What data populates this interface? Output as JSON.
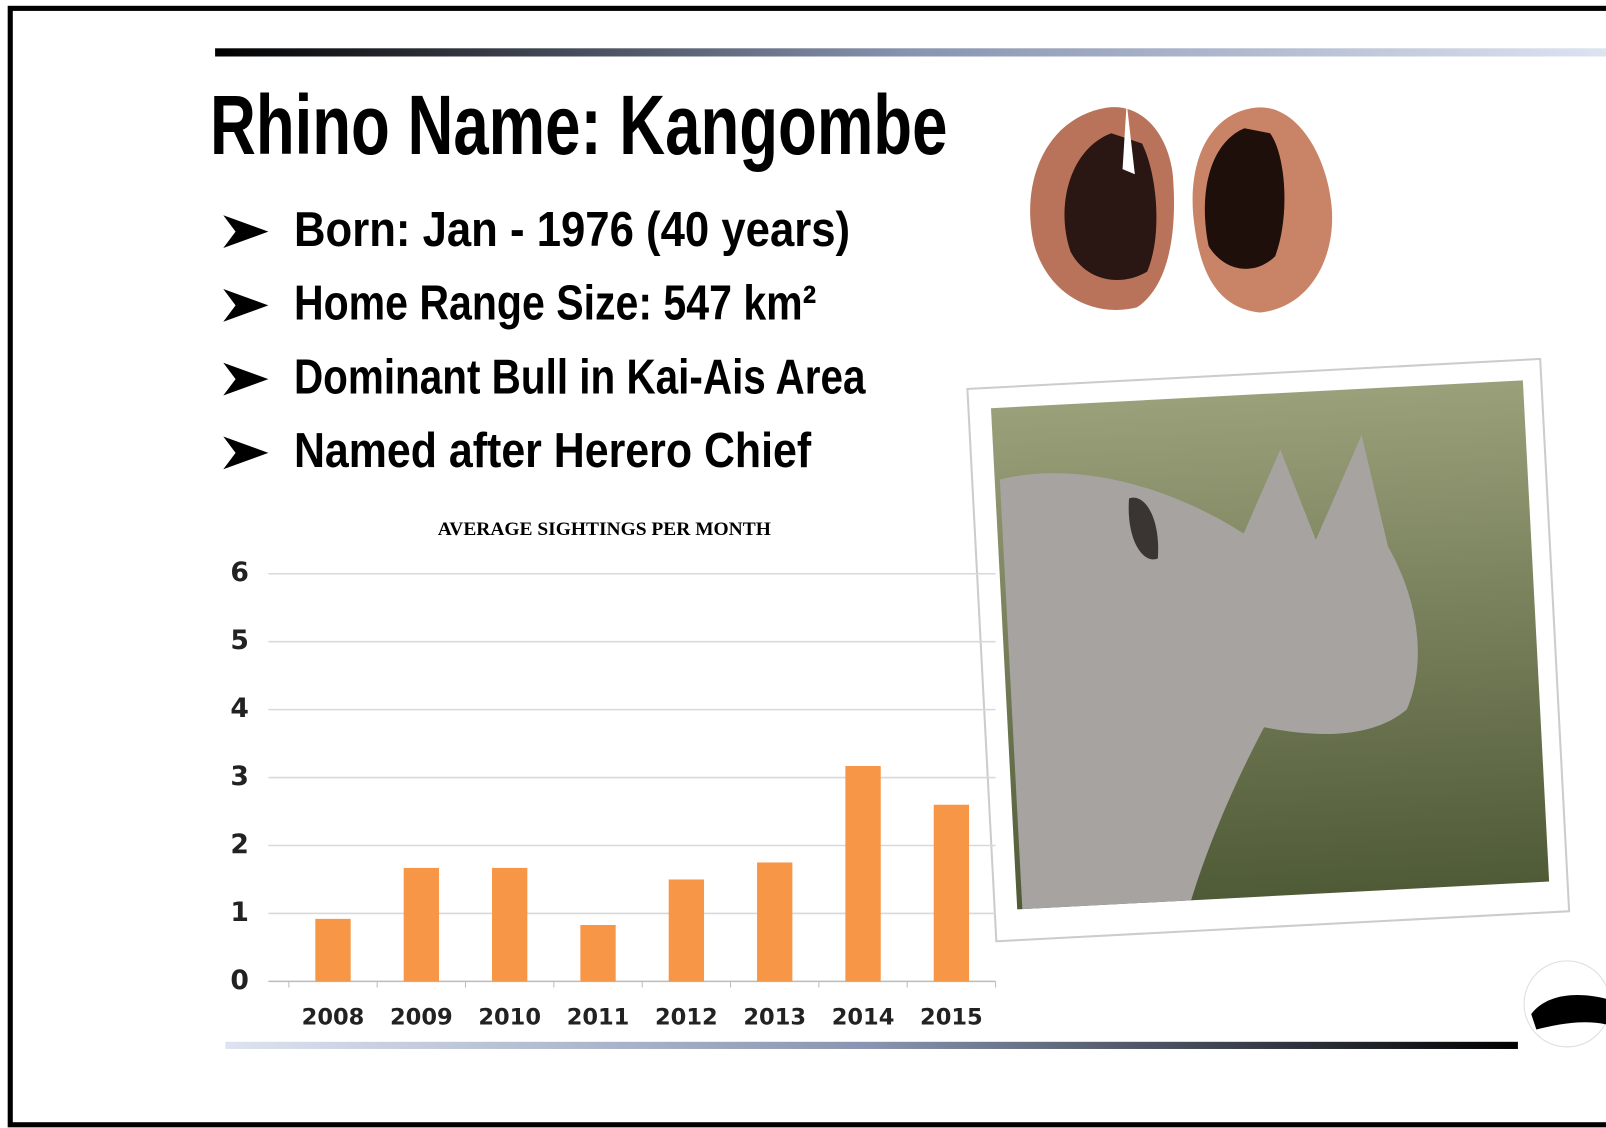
{
  "header": {
    "title": "Rhino Name: Kangombe"
  },
  "bullets": [
    "Born:  Jan - 1976 (40 years)",
    "Home Range Size: 547 km²",
    "Dominant Bull in Kai-Ais Area",
    "Named after Herero Chief"
  ],
  "chart_data": {
    "type": "bar",
    "title": "AVERAGE SIGHTINGS PER MONTH",
    "categories": [
      "2008",
      "2009",
      "2010",
      "2011",
      "2012",
      "2013",
      "2014",
      "2015"
    ],
    "values": [
      0.92,
      1.67,
      1.67,
      0.83,
      1.5,
      1.75,
      3.17,
      2.6
    ],
    "color": "#f79646",
    "ylim": [
      0,
      6
    ],
    "yticks": [
      0,
      1,
      2,
      3,
      4,
      5,
      6
    ],
    "grid": true
  }
}
